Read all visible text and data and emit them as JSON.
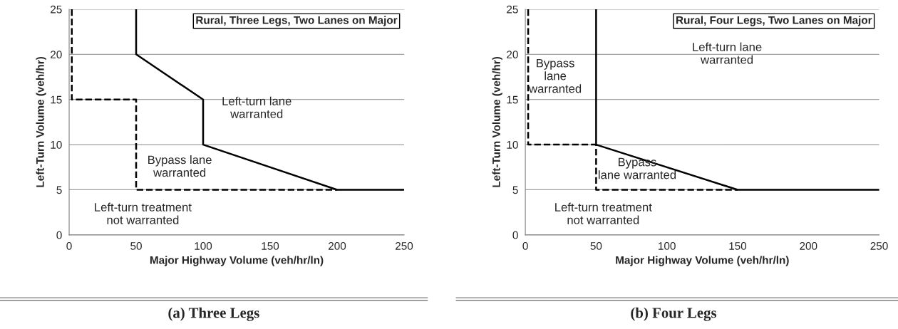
{
  "chart_data": [
    {
      "type": "line",
      "title": "Rural, Three Legs, Two Lanes on Major",
      "xlabel": "Major Highway Volume (veh/hr/ln)",
      "ylabel": "Left-Turn Volume (veh/hr)",
      "xlim": [
        0,
        250
      ],
      "ylim": [
        0,
        25
      ],
      "xticks": [
        0,
        50,
        100,
        150,
        200,
        250
      ],
      "yticks": [
        0,
        5,
        10,
        15,
        20,
        25
      ],
      "grid": "y",
      "series": [
        {
          "color": "#000000",
          "line_style": "solid",
          "x": [
            50,
            50,
            100,
            100,
            200,
            250
          ],
          "values": [
            25,
            20,
            15,
            10,
            5,
            5
          ]
        },
        {
          "color": "#000000",
          "line_style": "dashed",
          "x": [
            2,
            2,
            50,
            50,
            200
          ],
          "values": [
            25,
            15,
            15,
            5,
            5
          ]
        }
      ],
      "annotations": [
        "Left-turn lane\nwarranted",
        "Bypass lane\nwarranted",
        "Left-turn treatment\nnot warranted",
        "(a) Three Legs"
      ]
    },
    {
      "type": "line",
      "title": "Rural, Four Legs, Two Lanes on Major",
      "xlabel": "Major Highway Volume (veh/hr/ln)",
      "ylabel": "Left-Turn Volume (veh/hr)",
      "xlim": [
        0,
        250
      ],
      "ylim": [
        0,
        25
      ],
      "xticks": [
        0,
        50,
        100,
        150,
        200,
        250
      ],
      "yticks": [
        0,
        5,
        10,
        15,
        20,
        25
      ],
      "grid": "y",
      "series": [
        {
          "color": "#000000",
          "line_style": "solid",
          "x": [
            50,
            50,
            150,
            250
          ],
          "values": [
            25,
            10,
            5,
            5
          ]
        },
        {
          "color": "#000000",
          "line_style": "dashed",
          "x": [
            2,
            2,
            50,
            50,
            150
          ],
          "values": [
            25,
            10,
            10,
            5,
            5
          ]
        }
      ],
      "annotations": [
        "Left-turn lane\nwarranted",
        "Bypass\nlane\nwarranted",
        "Bypass\nlane warranted",
        "Left-turn treatment\nnot warranted",
        "(b) Four Legs"
      ]
    }
  ]
}
